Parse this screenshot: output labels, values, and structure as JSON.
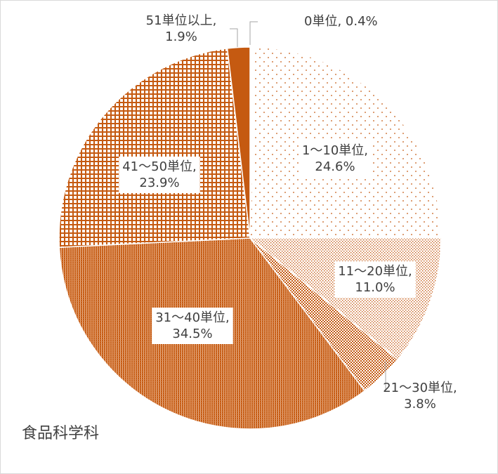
{
  "subject_label": "食品科学科",
  "colors": {
    "accent": "#c55a11",
    "text": "#404040",
    "border": "#d9d9d9"
  },
  "chart_data": {
    "type": "pie",
    "title": "",
    "start_angle_deg": 0,
    "direction": "clockwise",
    "slices": [
      {
        "label": "0単位",
        "value": 0.4,
        "value_text": "0.4%",
        "pattern": "none"
      },
      {
        "label": "1～10単位",
        "value": 24.6,
        "value_text": "24.6%",
        "pattern": "sparse-dots"
      },
      {
        "label": "11～20単位",
        "value": 11.0,
        "value_text": "11.0%",
        "pattern": "fine-dots"
      },
      {
        "label": "21～30単位",
        "value": 3.8,
        "value_text": "3.8%",
        "pattern": "checker"
      },
      {
        "label": "31～40単位",
        "value": 34.5,
        "value_text": "34.5%",
        "pattern": "dense-vertical"
      },
      {
        "label": "41～50単位",
        "value": 23.9,
        "value_text": "23.9%",
        "pattern": "grid"
      },
      {
        "label": "51単位以上",
        "value": 1.9,
        "value_text": "1.9%",
        "pattern": "solid"
      }
    ]
  }
}
